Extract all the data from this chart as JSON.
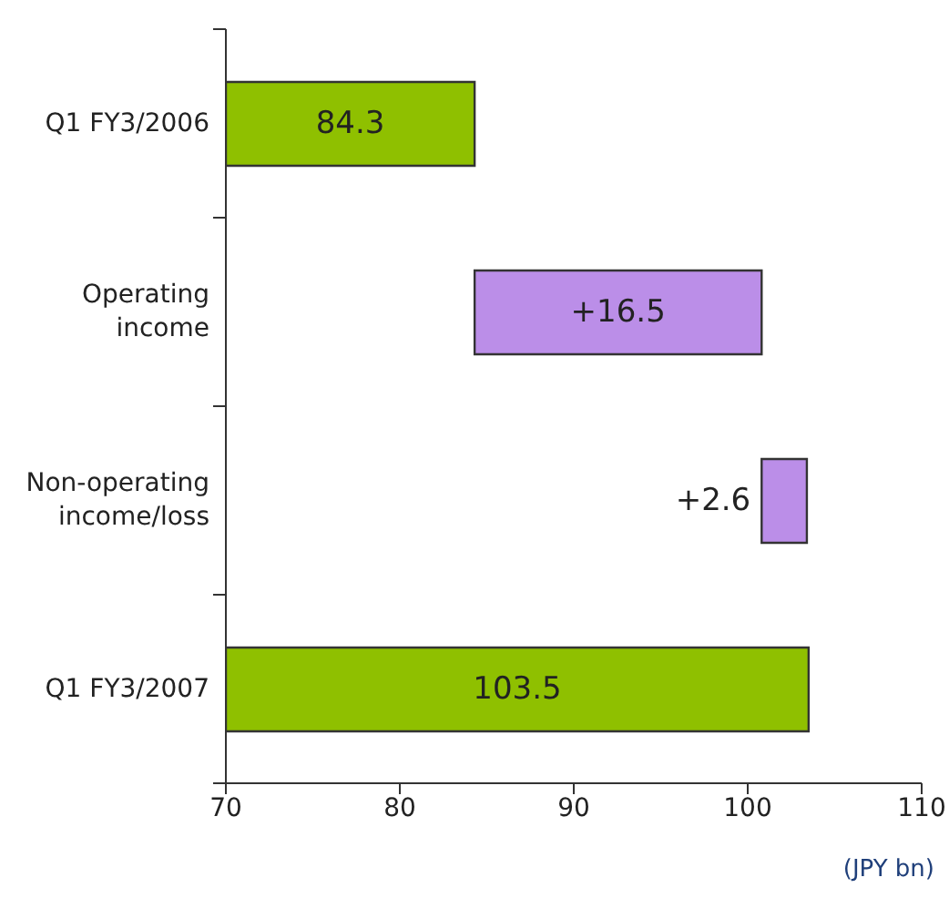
{
  "chart_data": {
    "type": "bar",
    "orientation": "horizontal",
    "categories": [
      "Q1 FY3/2006",
      "Operating income",
      "Non-operating income/loss",
      "Q1 FY3/2007"
    ],
    "values": [
      84.3,
      16.5,
      2.6,
      103.5
    ],
    "base": [
      null,
      84.3,
      100.8,
      null
    ],
    "colors": [
      "#8fc000",
      "#bb8ee8",
      "#bb8ee8",
      "#8fc000"
    ],
    "value_labels": [
      "84.3",
      "+16.5",
      "+2.6",
      "103.5"
    ],
    "xlim": [
      70,
      110
    ],
    "xticks": [
      70,
      80,
      90,
      100,
      110
    ],
    "annotations": [
      "(JPY bn)"
    ]
  }
}
